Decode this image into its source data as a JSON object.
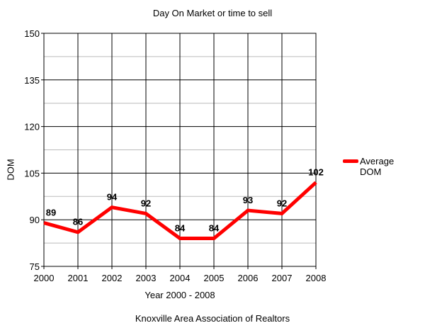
{
  "chart_data": {
    "type": "line",
    "title": "Day On Market or time to sell",
    "xlabel": "Year 2000 - 2008",
    "ylabel": "DOM",
    "source": "Knoxville Area Association of Realtors",
    "categories": [
      "2000",
      "2001",
      "2002",
      "2003",
      "2004",
      "2005",
      "2006",
      "2007",
      "2008"
    ],
    "series": [
      {
        "name": "Average DOM",
        "values": [
          89,
          86,
          94,
          92,
          84,
          84,
          93,
          92,
          102
        ],
        "color": "#ff0000"
      }
    ],
    "ylim": [
      75,
      150
    ],
    "yticks": [
      75,
      90,
      105,
      120,
      135,
      150
    ],
    "grid": true,
    "legend": "right",
    "data_labels": true
  }
}
